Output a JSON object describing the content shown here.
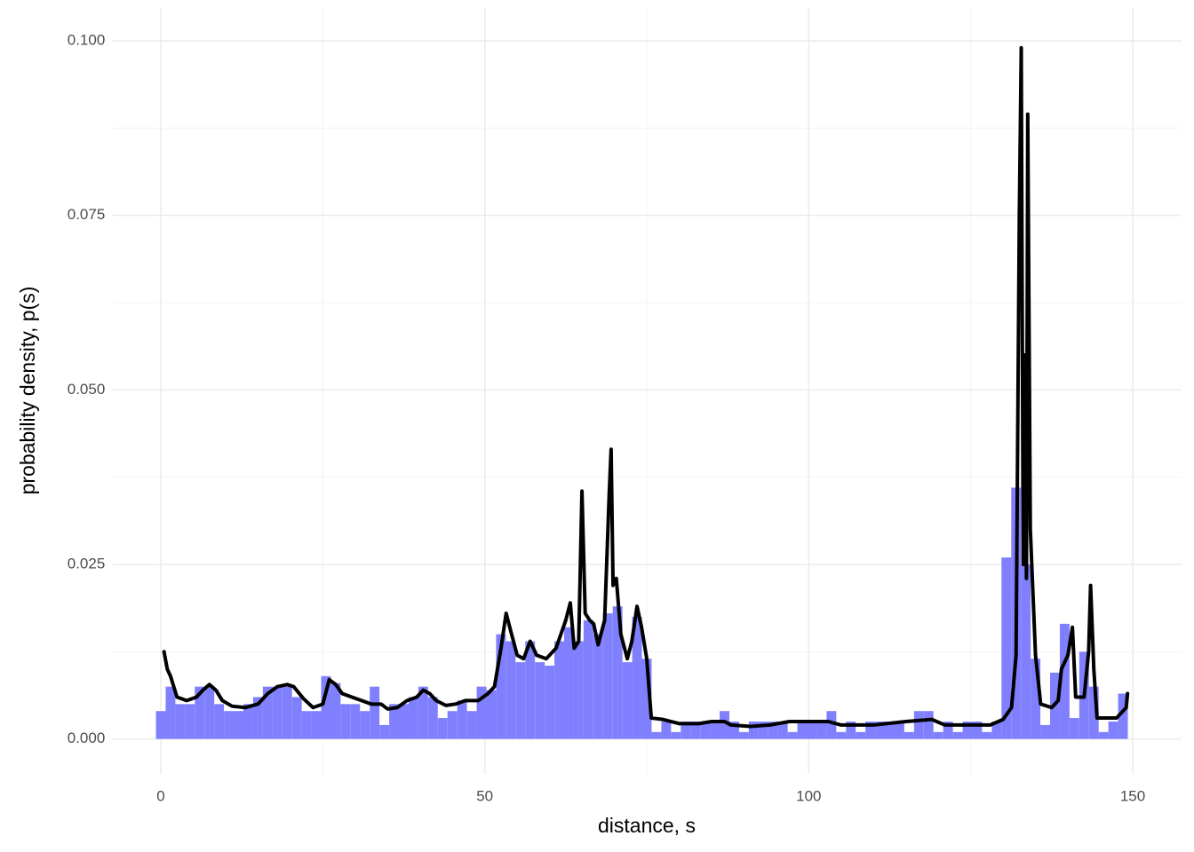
{
  "chart_data": {
    "type": "histogram",
    "x_label": "distance, s",
    "y_label": "probability density, p(s)",
    "color": "#8080ff",
    "bins": [
      -0.75,
      0.75,
      2.25,
      3.75,
      5.25,
      6.75,
      8.25,
      9.75,
      11.25,
      12.75,
      14.25,
      15.75,
      17.25,
      18.75,
      20.25,
      21.75,
      23.25,
      24.75,
      26.25,
      27.75,
      29.25,
      30.75,
      32.25,
      33.75,
      35.25,
      36.75,
      38.25,
      39.75,
      41.25,
      42.75,
      44.25,
      45.75,
      47.25,
      48.75,
      50.25,
      51.75,
      53.25,
      54.75,
      56.25,
      57.75,
      59.25,
      60.75,
      62.25,
      63.75,
      65.25,
      66.75,
      68.25,
      69.75,
      71.25,
      72.75,
      74.25,
      75.75,
      77.25,
      78.75,
      80.25,
      81.75,
      83.25,
      84.75,
      86.25,
      87.75,
      89.25,
      90.75,
      92.25,
      93.75,
      95.25,
      96.75,
      98.25,
      99.75,
      101.25,
      102.75,
      104.25,
      105.75,
      107.25,
      108.75,
      110.25,
      111.75,
      113.25,
      114.75,
      116.25,
      117.75,
      119.25,
      120.75,
      122.25,
      123.75,
      125.25,
      126.75,
      128.25,
      129.75,
      131.25,
      132.75,
      134.25,
      135.75,
      137.25,
      138.75,
      140.25,
      141.75,
      143.25,
      144.75,
      146.25,
      147.75,
      149.25
    ],
    "values": [
      0.004,
      0.0075,
      0.005,
      0.005,
      0.0075,
      0.0075,
      0.005,
      0.004,
      0.004,
      0.005,
      0.006,
      0.0075,
      0.0075,
      0.0075,
      0.006,
      0.004,
      0.004,
      0.009,
      0.008,
      0.005,
      0.005,
      0.004,
      0.0075,
      0.002,
      0.005,
      0.005,
      0.006,
      0.0075,
      0.006,
      0.003,
      0.004,
      0.0055,
      0.004,
      0.0075,
      0.007,
      0.015,
      0.014,
      0.011,
      0.014,
      0.011,
      0.0105,
      0.014,
      0.016,
      0.014,
      0.017,
      0.015,
      0.018,
      0.019,
      0.011,
      0.0175,
      0.0115,
      0.001,
      0.0025,
      0.001,
      0.0025,
      0.0025,
      0.0025,
      0.0025,
      0.004,
      0.0025,
      0.001,
      0.0025,
      0.0025,
      0.0025,
      0.0025,
      0.001,
      0.0025,
      0.0025,
      0.0025,
      0.004,
      0.001,
      0.0025,
      0.001,
      0.0025,
      0.0025,
      0.0025,
      0.0025,
      0.001,
      0.004,
      0.004,
      0.001,
      0.0025,
      0.001,
      0.0025,
      0.0025,
      0.001,
      0.0025,
      0.026,
      0.036,
      0.025,
      0.0115,
      0.002,
      0.0095,
      0.0165,
      0.003,
      0.0125,
      0.0075,
      0.001,
      0.0025,
      0.0065
    ],
    "overlay": {
      "type": "line",
      "color": "#000000",
      "x": [
        0.5,
        1,
        1.5,
        2.5,
        4,
        5.5,
        6.5,
        7.5,
        8.5,
        9.5,
        11,
        13,
        15,
        16.5,
        18,
        19.5,
        20.5,
        22,
        23.5,
        25,
        26,
        27,
        28,
        29.5,
        31,
        32.5,
        34,
        35,
        36.5,
        38,
        39.5,
        40.5,
        41.5,
        42.5,
        44,
        45.5,
        47,
        49,
        50.5,
        51.5,
        52.5,
        53.3,
        54,
        55,
        56,
        57,
        58,
        59.5,
        61,
        62.5,
        63.2,
        63.8,
        64.5,
        65,
        65.5,
        66.2,
        66.8,
        67.5,
        68.5,
        69.2,
        69.5,
        69.8,
        70.3,
        71,
        72,
        72.7,
        73.5,
        74.2,
        75,
        75.7,
        77.5,
        80,
        83,
        85,
        87,
        88,
        91,
        94,
        97,
        101,
        103,
        105,
        110,
        115,
        119,
        121,
        125,
        128,
        130,
        131.3,
        132,
        132.5,
        132.8,
        133.1,
        133.3,
        133.6,
        133.8,
        134.2,
        135,
        135.8,
        137.5,
        138.5,
        139,
        140,
        140.7,
        141.2,
        142.5,
        143.2,
        143.5,
        144,
        144.5,
        147.5,
        149,
        149.2
      ],
      "values": [
        0.0125,
        0.01,
        0.009,
        0.006,
        0.0055,
        0.006,
        0.007,
        0.0078,
        0.007,
        0.0055,
        0.0047,
        0.0045,
        0.005,
        0.0065,
        0.0075,
        0.0078,
        0.0075,
        0.0058,
        0.0045,
        0.005,
        0.0085,
        0.0078,
        0.0065,
        0.006,
        0.0055,
        0.005,
        0.005,
        0.0043,
        0.0045,
        0.0055,
        0.006,
        0.007,
        0.0065,
        0.0055,
        0.0048,
        0.005,
        0.0055,
        0.0055,
        0.0065,
        0.0075,
        0.013,
        0.018,
        0.0155,
        0.012,
        0.0115,
        0.014,
        0.012,
        0.0115,
        0.013,
        0.017,
        0.0195,
        0.013,
        0.014,
        0.0355,
        0.018,
        0.017,
        0.0165,
        0.0135,
        0.017,
        0.035,
        0.0415,
        0.022,
        0.023,
        0.015,
        0.0115,
        0.014,
        0.019,
        0.016,
        0.0115,
        0.003,
        0.0028,
        0.0022,
        0.0022,
        0.0025,
        0.0025,
        0.002,
        0.0018,
        0.002,
        0.0025,
        0.0025,
        0.0025,
        0.002,
        0.002,
        0.0025,
        0.0028,
        0.002,
        0.002,
        0.002,
        0.0028,
        0.0045,
        0.012,
        0.075,
        0.099,
        0.025,
        0.055,
        0.023,
        0.0895,
        0.03,
        0.012,
        0.005,
        0.0045,
        0.0055,
        0.01,
        0.012,
        0.016,
        0.006,
        0.006,
        0.0125,
        0.022,
        0.01,
        0.003,
        0.003,
        0.0045,
        0.0065
      ]
    },
    "xlim": [
      -7.5,
      157.5
    ],
    "xticks": [
      0,
      50,
      100,
      150
    ],
    "xminor": [
      25,
      75,
      125
    ],
    "ylim": [
      -0.005,
      0.1047
    ],
    "yticks": [
      {
        "value": 0,
        "label": "0.000"
      },
      {
        "value": 0.025,
        "label": "0.025"
      },
      {
        "value": 0.05,
        "label": "0.050"
      },
      {
        "value": 0.075,
        "label": "0.075"
      },
      {
        "value": 0.1,
        "label": "0.100"
      }
    ],
    "yminor": [
      0.0125,
      0.0375,
      0.0625,
      0.0875
    ],
    "grid": true
  }
}
